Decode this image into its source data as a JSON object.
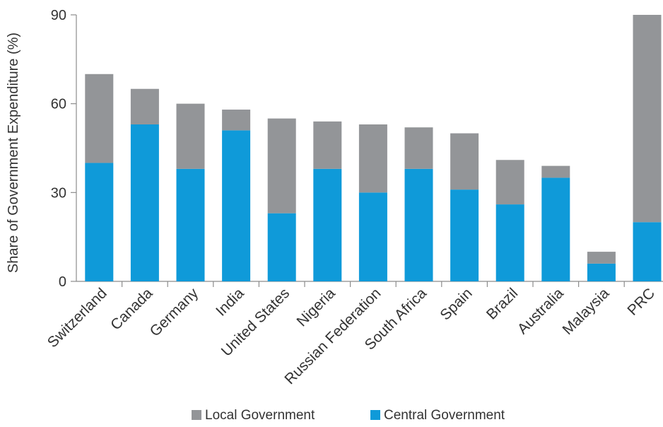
{
  "chart_data": {
    "type": "bar",
    "stacked": true,
    "title": "",
    "xlabel": "",
    "ylabel": "Share of Government Expenditure (%)",
    "ylim": [
      0,
      90
    ],
    "yticks": [
      0,
      30,
      60,
      90
    ],
    "grid": false,
    "legend_position": "bottom",
    "categories": [
      "Switzerland",
      "Canada",
      "Germany",
      "India",
      "United States",
      "Nigeria",
      "Russian Federation",
      "South Africa",
      "Spain",
      "Brazil",
      "Australia",
      "Malaysia",
      "PRC"
    ],
    "series": [
      {
        "name": "Central Government",
        "color": "#0f9ad9",
        "values": [
          40,
          53,
          38,
          51,
          23,
          38,
          30,
          38,
          31,
          26,
          35,
          6,
          20
        ]
      },
      {
        "name": "Local Government",
        "color": "#939598",
        "values": [
          30,
          12,
          22,
          7,
          32,
          16,
          23,
          14,
          19,
          15,
          4,
          4,
          70
        ]
      }
    ],
    "legend": [
      {
        "label": "Local Government",
        "color": "#939598"
      },
      {
        "label": "Central Government",
        "color": "#0f9ad9"
      }
    ]
  }
}
